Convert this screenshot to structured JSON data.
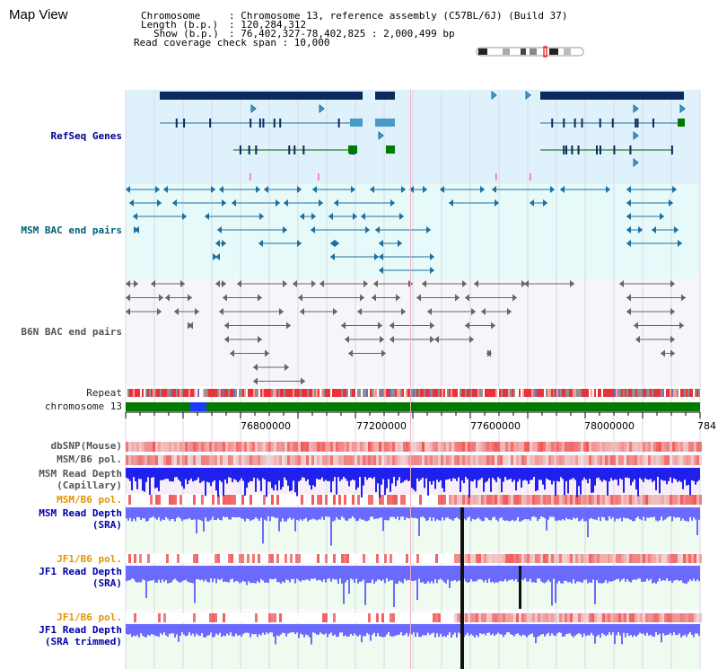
{
  "page": {
    "title": "Map View"
  },
  "info": {
    "chromosome_key": "Chromosome",
    "chromosome_val": ": Chromosome 13, reference assembly (C57BL/6J) (Build 37)",
    "length_key": "Length (b.p.)",
    "length_val": ": 120,284,312",
    "show_key": "Show (b.p.)",
    "show_val": ": 76,402,327-78,402,825 : 2,000,499 bp",
    "coverage": "Read coverage check span : 10,000"
  },
  "tracks": {
    "refseq": "RefSeq Genes",
    "msm_bac": "MSM BAC end pairs",
    "b6n_bac": "B6N BAC end pairs",
    "repeat": "Repeat",
    "chromosome": "chromosome 13",
    "dbsnp": "dbSNP(Mouse)",
    "msm_b6_pol_1": "MSM/B6 pol.",
    "msm_depth_cap_1": "MSM Read Depth",
    "msm_depth_cap_2": "(Capillary)",
    "msm_b6_pol_2": "MSM/B6 pol.",
    "msm_depth_sra_1": "MSM Read Depth",
    "msm_depth_sra_2": "(SRA)",
    "jf1_b6_pol_1": "JF1/B6 pol.",
    "jf1_depth_sra_1": "JF1 Read Depth",
    "jf1_depth_sra_2": "(SRA)",
    "jf1_b6_pol_2": "JF1/B6 pol.",
    "jf1_depth_trim_1": "JF1 Read Depth",
    "jf1_depth_trim_2": "(SRA trimmed)"
  },
  "axis": {
    "ticks": [
      "76800000",
      "77200000",
      "77600000",
      "78000000",
      "784"
    ]
  },
  "colors": {
    "refseq_bg": "#dff2fb",
    "msm_bac_bg": "#e6fafa",
    "b6n_bac_bg": "#f3f3f8",
    "gene_dark": "#0a2a5e",
    "gene_light": "#4a9ac8",
    "chromosome_green": "#007a00",
    "chromosome_blue": "#1e3cff",
    "depth_blue": "#5b5bff",
    "pol_red": "#e84a4a"
  }
}
